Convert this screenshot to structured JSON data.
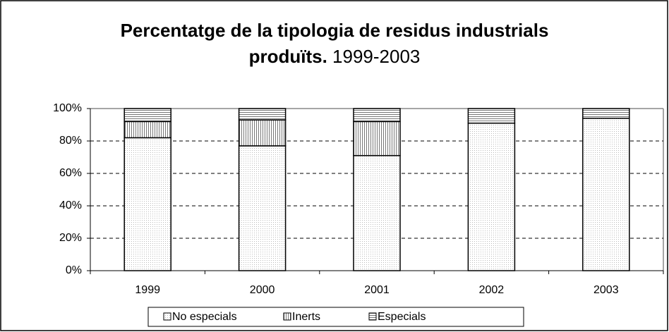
{
  "chart_data": {
    "type": "stacked_bar",
    "title": "Percentatge de la tipologia de residus industrials produïts.",
    "subtitle": "1999-2003",
    "categories": [
      "1999",
      "2000",
      "2001",
      "2002",
      "2003"
    ],
    "series": [
      {
        "name": "No especials",
        "color": "#e8e8e8",
        "pattern": "dots",
        "values": [
          82,
          77,
          71,
          91,
          94
        ]
      },
      {
        "name": "Inerts",
        "color": "#888888",
        "pattern": "vertical",
        "values": [
          10,
          16,
          21,
          0,
          0
        ]
      },
      {
        "name": "Especials",
        "color": "#999999",
        "pattern": "horizontal",
        "values": [
          8,
          7,
          8,
          9,
          6
        ]
      }
    ],
    "ylim": [
      0,
      100
    ],
    "yticks": [
      {
        "value": 0,
        "label": "0%"
      },
      {
        "value": 20,
        "label": "20%"
      },
      {
        "value": 40,
        "label": "40%"
      },
      {
        "value": 60,
        "label": "60%"
      },
      {
        "value": 80,
        "label": "80%"
      },
      {
        "value": 100,
        "label": "100%"
      }
    ],
    "grid": true,
    "legend": "bottom"
  }
}
